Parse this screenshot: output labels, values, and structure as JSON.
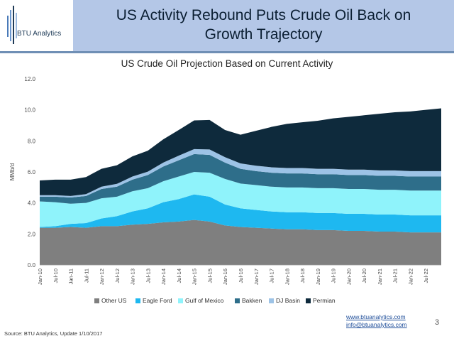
{
  "header": {
    "logo_text": "BTU Analytics",
    "title_line1": "US Activity Rebound Puts Crude Oil Back on",
    "title_line2": "Growth Trajectory"
  },
  "footer": {
    "website": "www.btuanalytics.com",
    "email": "info@btuanalytics.com",
    "page_number": "3",
    "source": "Source: BTU Analytics, Update 1/10/2017"
  },
  "colors": {
    "banner": "#b4c7e7",
    "Other US": "#7f7f7f",
    "Eagle Ford": "#1eb8f0",
    "Gulf of Mexico": "#8ff3fb",
    "Bakken": "#2e6e8a",
    "DJ Basin": "#9dc3e6",
    "Permian": "#0e2a3c"
  },
  "chart_data": {
    "type": "area",
    "stacked": true,
    "title": "US Crude Oil Projection Based on Current Activity",
    "ylabel": "MMb/d",
    "xlabel": "",
    "ylim": [
      0,
      12
    ],
    "yticks": [
      "0.0",
      "2.0",
      "4.0",
      "6.0",
      "8.0",
      "10.0",
      "12.0"
    ],
    "x": [
      "Jan-10",
      "Jul-10",
      "Jan-11",
      "Jul-11",
      "Jan-12",
      "Jul-12",
      "Jan-13",
      "Jul-13",
      "Jan-14",
      "Jul-14",
      "Jan-15",
      "Jul-15",
      "Jan-16",
      "Jul-16",
      "Jan-17",
      "Jul-17",
      "Jan-18",
      "Jul-18",
      "Jan-19",
      "Jul-19",
      "Jan-20",
      "Jul-20",
      "Jan-21",
      "Jul-21",
      "Jan-22",
      "Jul-22",
      "Dec-22"
    ],
    "xticks": [
      "Jan-10",
      "Jul-10",
      "Jan-11",
      "Jul-11",
      "Jan-12",
      "Jul-12",
      "Jan-13",
      "Jul-13",
      "Jan-14",
      "Jul-14",
      "Jan-15",
      "Jul-15",
      "Jan-16",
      "Jul-16",
      "Jan-17",
      "Jul-17",
      "Jan-18",
      "Jul-18",
      "Jan-19",
      "Jul-19",
      "Jan-20",
      "Jul-20",
      "Jan-21",
      "Jul-21",
      "Jan-22",
      "Jul-22"
    ],
    "grid": false,
    "legend_position": "bottom",
    "series": [
      {
        "name": "Other US",
        "values": [
          2.4,
          2.4,
          2.45,
          2.4,
          2.5,
          2.5,
          2.6,
          2.65,
          2.75,
          2.8,
          2.9,
          2.8,
          2.55,
          2.45,
          2.4,
          2.35,
          2.3,
          2.3,
          2.25,
          2.25,
          2.2,
          2.2,
          2.15,
          2.15,
          2.1,
          2.1,
          2.1
        ]
      },
      {
        "name": "Eagle Ford",
        "values": [
          0.05,
          0.1,
          0.2,
          0.3,
          0.5,
          0.65,
          0.85,
          1.0,
          1.3,
          1.45,
          1.65,
          1.6,
          1.35,
          1.2,
          1.15,
          1.1,
          1.1,
          1.1,
          1.1,
          1.1,
          1.1,
          1.1,
          1.1,
          1.1,
          1.1,
          1.1,
          1.1
        ]
      },
      {
        "name": "Gulf of Mexico",
        "values": [
          1.65,
          1.55,
          1.3,
          1.3,
          1.3,
          1.25,
          1.3,
          1.3,
          1.35,
          1.45,
          1.45,
          1.55,
          1.65,
          1.6,
          1.6,
          1.6,
          1.6,
          1.6,
          1.6,
          1.6,
          1.6,
          1.6,
          1.6,
          1.6,
          1.6,
          1.6,
          1.6
        ]
      },
      {
        "name": "Bakken",
        "values": [
          0.3,
          0.35,
          0.4,
          0.45,
          0.6,
          0.65,
          0.75,
          0.85,
          0.95,
          1.05,
          1.15,
          1.15,
          1.05,
          0.95,
          0.9,
          0.9,
          0.9,
          0.9,
          0.9,
          0.9,
          0.9,
          0.9,
          0.9,
          0.9,
          0.9,
          0.9,
          0.9
        ]
      },
      {
        "name": "DJ Basin",
        "values": [
          0.1,
          0.1,
          0.1,
          0.12,
          0.15,
          0.18,
          0.2,
          0.22,
          0.25,
          0.3,
          0.32,
          0.35,
          0.35,
          0.35,
          0.35,
          0.35,
          0.35,
          0.35,
          0.35,
          0.35,
          0.35,
          0.35,
          0.35,
          0.35,
          0.35,
          0.35,
          0.35
        ]
      },
      {
        "name": "Permian",
        "values": [
          0.95,
          1.0,
          1.05,
          1.1,
          1.15,
          1.2,
          1.3,
          1.35,
          1.5,
          1.65,
          1.85,
          1.9,
          1.75,
          1.85,
          2.25,
          2.6,
          2.85,
          2.95,
          3.1,
          3.25,
          3.4,
          3.5,
          3.65,
          3.75,
          3.85,
          3.95,
          4.05
        ]
      }
    ]
  }
}
